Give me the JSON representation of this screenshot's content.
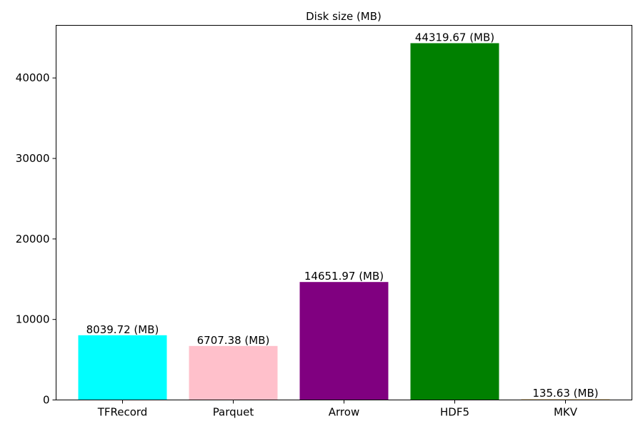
{
  "chart_data": {
    "type": "bar",
    "title": "Disk size (MB)",
    "xlabel": "",
    "ylabel": "",
    "categories": [
      "TFRecord",
      "Parquet",
      "Arrow",
      "HDF5",
      "MKV"
    ],
    "values": [
      8039.72,
      6707.38,
      14651.97,
      44319.67,
      135.63
    ],
    "value_labels": [
      "8039.72 (MB)",
      "6707.38 (MB)",
      "14651.97 (MB)",
      "44319.67 (MB)",
      "135.63 (MB)"
    ],
    "colors": [
      "#00ffff",
      "#ffc0cb",
      "#800080",
      "#008000",
      "#f5deb3"
    ],
    "ylim": [
      0,
      46535.65
    ],
    "yticks": [
      0,
      10000,
      20000,
      30000,
      40000
    ],
    "ytick_labels": [
      "0",
      "10000",
      "20000",
      "30000",
      "40000"
    ],
    "grid": false,
    "legend": "none"
  }
}
